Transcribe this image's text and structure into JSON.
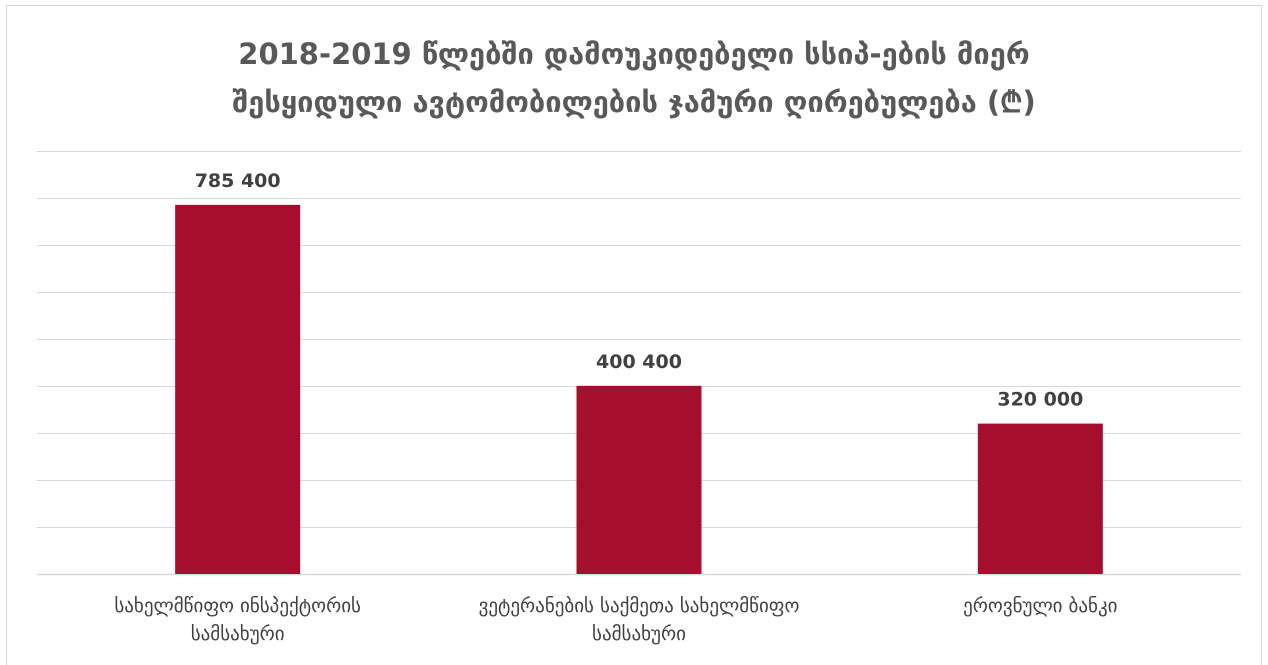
{
  "chart_data": {
    "type": "bar",
    "title_lines": [
      "2018-2019 წლებში დამოუკიდებელი სსიპ-ების მიერ",
      "შესყიდული ავტომობილების ჯამური ღირებულება (₾)"
    ],
    "categories": [
      [
        "სახელმწიფო ინსპექტორის",
        "სამსახური"
      ],
      [
        "ვეტერანების საქმეთა სახელმწიფო",
        "სამსახური"
      ],
      [
        "ეროვნული ბანკი"
      ]
    ],
    "values": [
      785400,
      400400,
      320000
    ],
    "data_labels": [
      "785 400",
      "400 400",
      "320 000"
    ],
    "xlabel": "",
    "ylabel": "",
    "ylim": [
      0,
      900000
    ],
    "y_grid_step": 100000,
    "grid": true,
    "y_tick_labels_visible": false,
    "legend": "none",
    "bar_color": "#a50e2d",
    "grid_color": "#d9d9d9",
    "title_color": "#595959",
    "label_color": "#404040"
  }
}
